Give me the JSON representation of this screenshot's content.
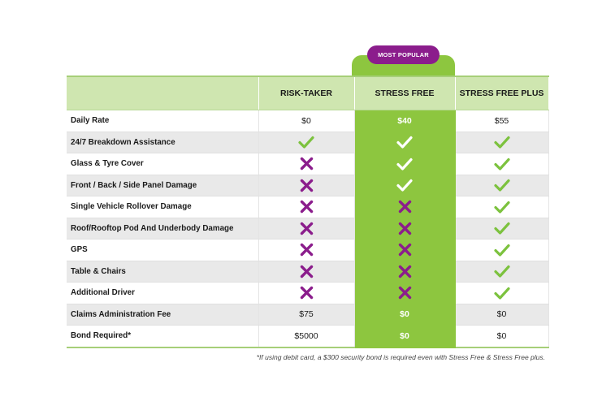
{
  "badge": "MOST POPULAR",
  "headers": [
    "",
    "RISK-TAKER",
    "STRESS FREE",
    "STRESS FREE PLUS"
  ],
  "colors": {
    "green": "#8dc63f",
    "check_green": "#7cc23e",
    "purple": "#8b1d8c",
    "header_bg": "#cfe6b0"
  },
  "rows": [
    {
      "label": "Daily Rate",
      "values": [
        {
          "type": "text",
          "text": "$0"
        },
        {
          "type": "text",
          "text": "$40"
        },
        {
          "type": "text",
          "text": "$55"
        }
      ]
    },
    {
      "label": "24/7 Breakdown Assistance",
      "values": [
        {
          "type": "check-icon"
        },
        {
          "type": "check-icon"
        },
        {
          "type": "check-icon"
        }
      ]
    },
    {
      "label": "Glass & Tyre Cover",
      "values": [
        {
          "type": "cross-icon"
        },
        {
          "type": "check-icon"
        },
        {
          "type": "check-icon"
        }
      ]
    },
    {
      "label": "Front / Back / Side Panel Damage",
      "values": [
        {
          "type": "cross-icon"
        },
        {
          "type": "check-icon"
        },
        {
          "type": "check-icon"
        }
      ]
    },
    {
      "label": "Single Vehicle Rollover Damage",
      "values": [
        {
          "type": "cross-icon"
        },
        {
          "type": "cross-icon"
        },
        {
          "type": "check-icon"
        }
      ]
    },
    {
      "label": "Roof/Rooftop Pod And Underbody Damage",
      "values": [
        {
          "type": "cross-icon"
        },
        {
          "type": "cross-icon"
        },
        {
          "type": "check-icon"
        }
      ]
    },
    {
      "label": "GPS",
      "values": [
        {
          "type": "cross-icon"
        },
        {
          "type": "cross-icon"
        },
        {
          "type": "check-icon"
        }
      ]
    },
    {
      "label": "Table & Chairs",
      "values": [
        {
          "type": "cross-icon"
        },
        {
          "type": "cross-icon"
        },
        {
          "type": "check-icon"
        }
      ]
    },
    {
      "label": "Additional Driver",
      "values": [
        {
          "type": "cross-icon"
        },
        {
          "type": "cross-icon"
        },
        {
          "type": "check-icon"
        }
      ]
    },
    {
      "label": "Claims Administration Fee",
      "values": [
        {
          "type": "text",
          "text": "$75"
        },
        {
          "type": "text",
          "text": "$0"
        },
        {
          "type": "text",
          "text": "$0"
        }
      ]
    },
    {
      "label": "Bond Required*",
      "values": [
        {
          "type": "text",
          "text": "$5000"
        },
        {
          "type": "text",
          "text": "$0"
        },
        {
          "type": "text",
          "text": "$0"
        }
      ]
    }
  ],
  "footnote": "*If using debit card, a $300 security bond is required even with Stress Free & Stress Free plus."
}
